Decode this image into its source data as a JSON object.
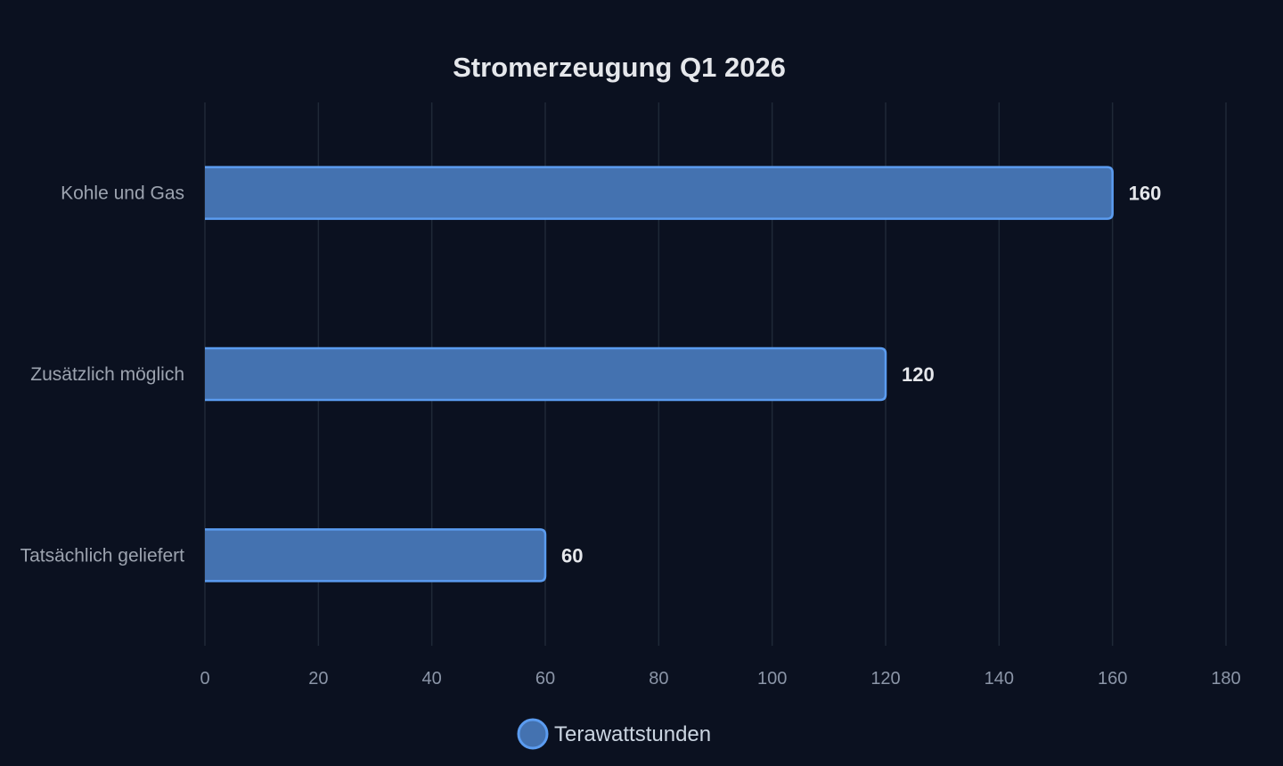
{
  "chart_data": {
    "type": "bar",
    "orientation": "horizontal",
    "title": "Stromerzeugung Q1 2026",
    "xlabel": "",
    "ylabel": "",
    "categories": [
      "Kohle und Gas",
      "Zusätzlich möglich",
      "Tatsächlich geliefert"
    ],
    "series": [
      {
        "name": "Terawattstunden",
        "values": [
          160,
          120,
          60
        ]
      }
    ],
    "xlim": [
      0,
      180
    ],
    "xticks": [
      0,
      20,
      40,
      60,
      80,
      100,
      120,
      140,
      160,
      180
    ],
    "grid": true,
    "legend_position": "bottom-center",
    "data_labels": true,
    "colors": {
      "background": "#0b1120",
      "bar_fill": "#4472b0",
      "bar_stroke": "#5b9cf0",
      "grid": "#1f2937"
    }
  }
}
